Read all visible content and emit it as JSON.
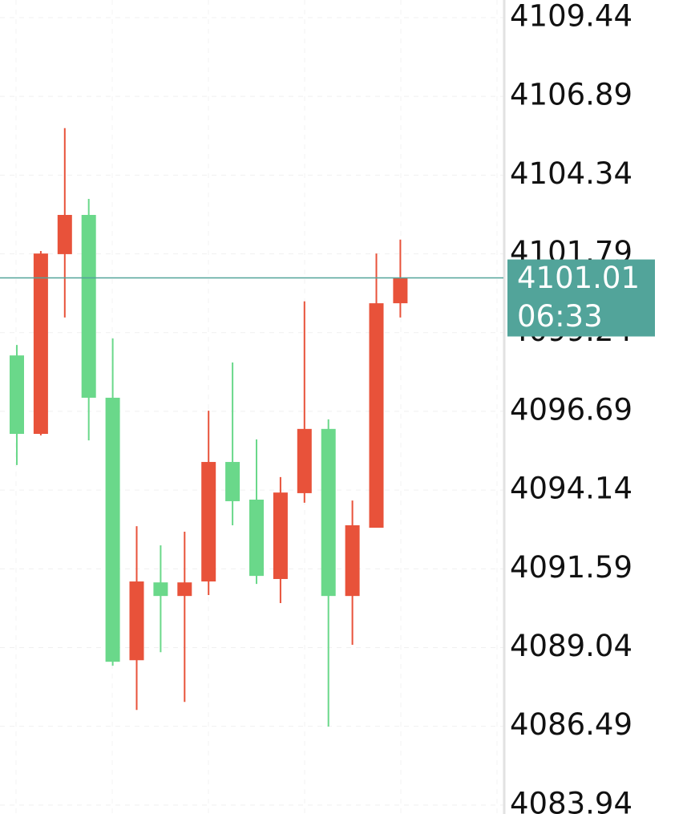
{
  "chart_data": {
    "type": "candlestick",
    "candles": [
      {
        "open": 4098.5,
        "high": 4098.84,
        "low": 4094.95,
        "close": 4095.96
      },
      {
        "open": 4095.96,
        "high": 4101.88,
        "low": 4095.91,
        "close": 4101.8
      },
      {
        "open": 4101.78,
        "high": 4105.86,
        "low": 4099.73,
        "close": 4103.05
      },
      {
        "open": 4103.05,
        "high": 4103.57,
        "low": 4095.75,
        "close": 4097.13
      },
      {
        "open": 4097.13,
        "high": 4099.05,
        "low": 4088.45,
        "close": 4088.58
      },
      {
        "open": 4088.63,
        "high": 4092.97,
        "low": 4087.02,
        "close": 4091.18
      },
      {
        "open": 4091.15,
        "high": 4092.35,
        "low": 4088.89,
        "close": 4090.71
      },
      {
        "open": 4090.71,
        "high": 4092.79,
        "low": 4087.28,
        "close": 4091.15
      },
      {
        "open": 4091.18,
        "high": 4096.71,
        "low": 4090.74,
        "close": 4095.05
      },
      {
        "open": 4095.05,
        "high": 4098.27,
        "low": 4093.0,
        "close": 4093.78
      },
      {
        "open": 4093.83,
        "high": 4095.78,
        "low": 4091.1,
        "close": 4091.36
      },
      {
        "open": 4091.26,
        "high": 4094.56,
        "low": 4090.48,
        "close": 4094.06
      },
      {
        "open": 4094.04,
        "high": 4100.25,
        "low": 4093.73,
        "close": 4096.12
      },
      {
        "open": 4096.12,
        "high": 4096.43,
        "low": 4086.48,
        "close": 4090.71
      },
      {
        "open": 4090.71,
        "high": 4093.8,
        "low": 4089.13,
        "close": 4093.0
      },
      {
        "open": 4092.92,
        "high": 4101.8,
        "low": 4092.92,
        "close": 4100.19
      },
      {
        "open": 4100.19,
        "high": 4102.25,
        "low": 4099.73,
        "close": 4101.01
      }
    ],
    "up_color": "#e8523a",
    "down_color": "#6ad88a",
    "ylim": [
      4083.65,
      4110.01
    ],
    "yticks": [
      4109.44,
      4106.89,
      4104.34,
      4101.79,
      4099.24,
      4096.69,
      4094.14,
      4091.59,
      4089.04,
      4086.49,
      4083.94
    ],
    "grid": true,
    "last_price": 4101.01,
    "countdown": "06:33",
    "last_price_color": "#52a49a"
  }
}
